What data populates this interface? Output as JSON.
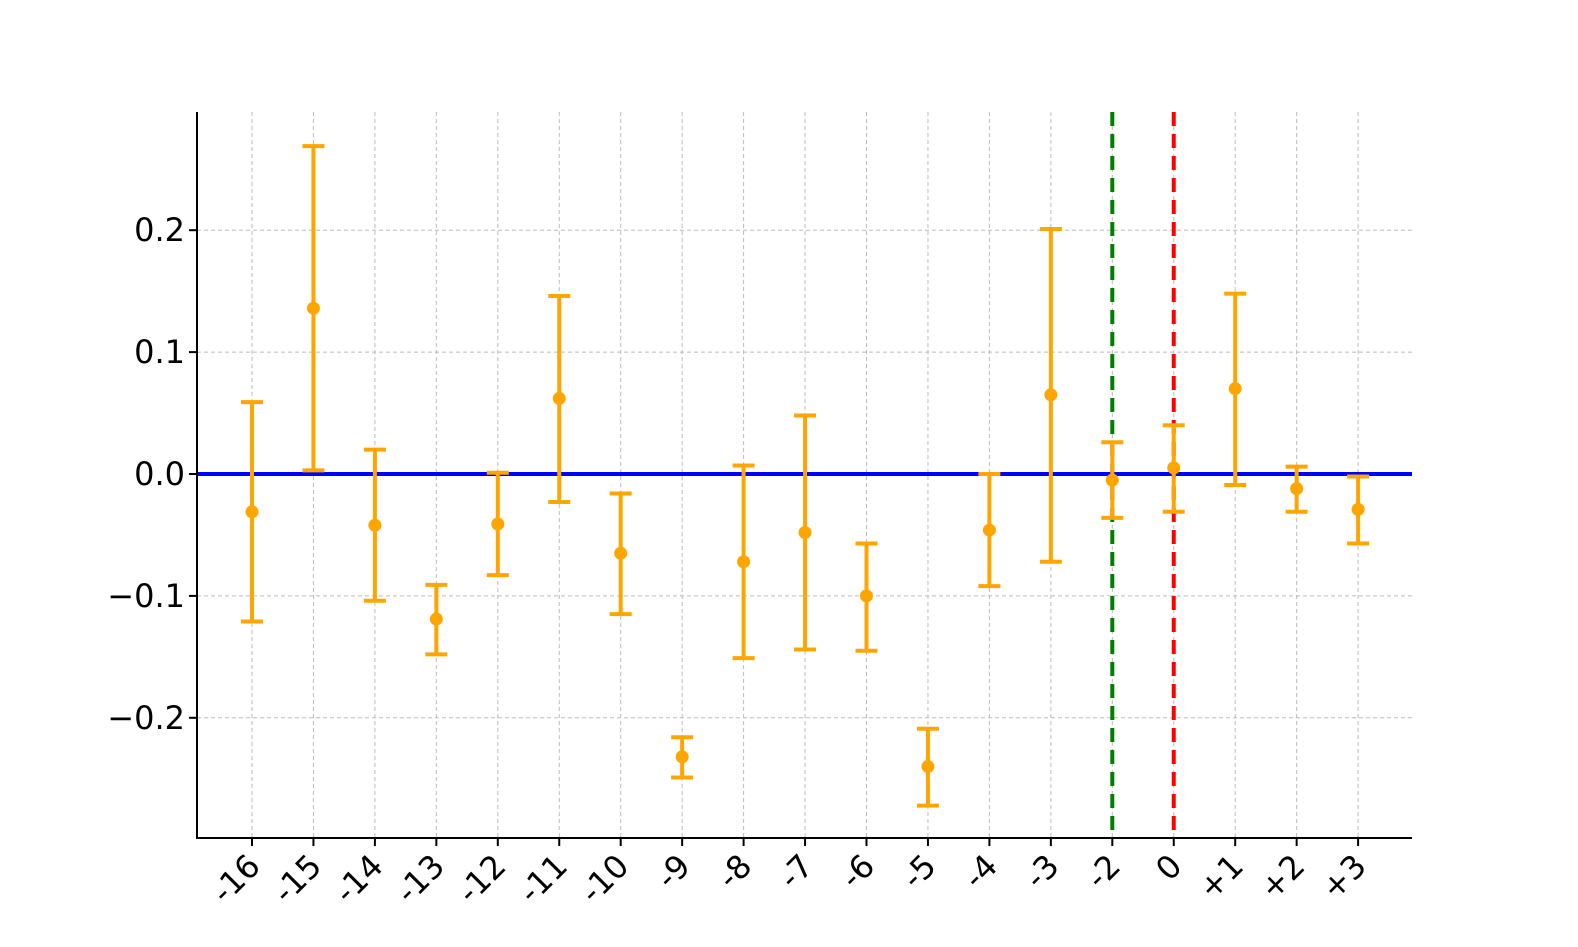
{
  "chart_data": {
    "type": "scatter",
    "title": "",
    "xlabel": "",
    "ylabel": "",
    "categories": [
      "-16",
      "-15",
      "-14",
      "-13",
      "-12",
      "-11",
      "-10",
      "-9",
      "-8",
      "-7",
      "-6",
      "-5",
      "-4",
      "-3",
      "-2",
      "0",
      "+1",
      "+2",
      "+3"
    ],
    "ylim": [
      -0.3,
      0.3
    ],
    "yticks": [
      -0.2,
      -0.1,
      0.0,
      0.1,
      0.2
    ],
    "ytick_labels": [
      "−0.2",
      "−0.1",
      "0.0",
      "0.1",
      "0.2"
    ],
    "grid": true,
    "series": [
      {
        "values": [
          -0.031,
          0.136,
          -0.042,
          -0.119,
          -0.041,
          0.062,
          -0.065,
          -0.232,
          -0.072,
          -0.048,
          -0.1,
          -0.24,
          -0.046,
          0.065,
          -0.005,
          0.005,
          0.07,
          -0.012,
          -0.029
        ],
        "lower": [
          -0.121,
          0.003,
          -0.104,
          -0.148,
          -0.083,
          -0.023,
          -0.115,
          -0.249,
          -0.151,
          -0.144,
          -0.145,
          -0.272,
          -0.092,
          -0.072,
          -0.036,
          -0.031,
          -0.009,
          -0.031,
          -0.057
        ],
        "upper": [
          0.059,
          0.269,
          0.02,
          -0.091,
          0.001,
          0.146,
          -0.016,
          -0.216,
          0.007,
          0.048,
          -0.057,
          -0.209,
          0.0,
          0.201,
          0.026,
          0.04,
          0.148,
          0.006,
          -0.002
        ],
        "color": "#FFA500"
      }
    ],
    "reference_lines": [
      {
        "orientation": "horizontal",
        "value": 0.0,
        "color": "#0000FF",
        "style": "solid"
      },
      {
        "orientation": "vertical",
        "category": "-2",
        "color": "#008000",
        "style": "dashed"
      },
      {
        "orientation": "vertical",
        "category": "0",
        "color": "#FF0000",
        "style": "dashed"
      }
    ]
  }
}
